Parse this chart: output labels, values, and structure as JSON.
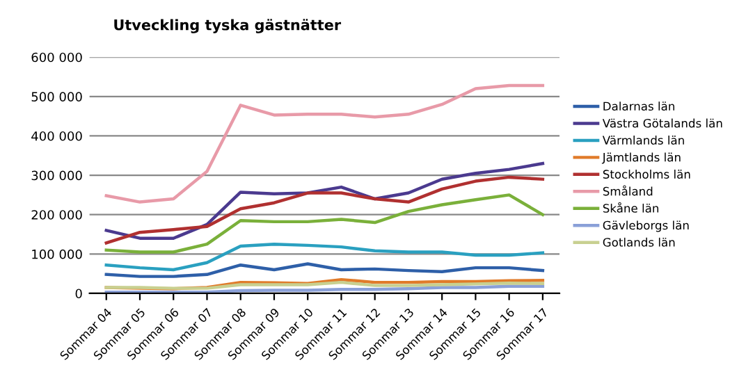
{
  "chart_data": {
    "type": "line",
    "title": "Utveckling tyska gästnätter",
    "categories": [
      "Sommar 04",
      "Sommar 05",
      "Sommar 06",
      "Sommar 07",
      "Sommar 08",
      "Sommar 09",
      "Sommar 10",
      "Sommar 11",
      "Sommar 12",
      "Sommar 13",
      "Sommar 14",
      "Sommar 15",
      "Sommar 16",
      "Sommar 17"
    ],
    "series": [
      {
        "name": "Dalarnas län",
        "color": "#2e5fa8",
        "values": [
          48000,
          43000,
          43000,
          48000,
          72000,
          60000,
          75000,
          60000,
          62000,
          58000,
          55000,
          65000,
          65000,
          58000
        ]
      },
      {
        "name": "Västra Götalands län",
        "color": "#4b3a8f",
        "values": [
          160000,
          140000,
          140000,
          175000,
          257000,
          253000,
          255000,
          270000,
          240000,
          255000,
          290000,
          305000,
          315000,
          330000
        ]
      },
      {
        "name": "Värmlands län",
        "color": "#2aa0c0",
        "values": [
          72000,
          65000,
          60000,
          78000,
          120000,
          125000,
          122000,
          118000,
          108000,
          105000,
          105000,
          97000,
          97000,
          103000
        ]
      },
      {
        "name": "Jämtlands län",
        "color": "#e07b2a",
        "values": [
          15000,
          13000,
          12000,
          15000,
          28000,
          27000,
          25000,
          35000,
          28000,
          28000,
          30000,
          30000,
          32000,
          33000
        ]
      },
      {
        "name": "Stockholms län",
        "color": "#b03030",
        "values": [
          128000,
          155000,
          162000,
          170000,
          215000,
          230000,
          255000,
          255000,
          240000,
          232000,
          265000,
          285000,
          295000,
          290000
        ]
      },
      {
        "name": "Småland",
        "color": "#e89aa8",
        "values": [
          248000,
          232000,
          240000,
          310000,
          478000,
          453000,
          455000,
          455000,
          448000,
          455000,
          480000,
          520000,
          528000,
          528000
        ]
      },
      {
        "name": "Skåne län",
        "color": "#7ab03a",
        "values": [
          110000,
          105000,
          105000,
          125000,
          185000,
          182000,
          182000,
          188000,
          180000,
          208000,
          225000,
          238000,
          250000,
          200000
        ]
      },
      {
        "name": "Gävleborgs län",
        "color": "#8aa0d8",
        "values": [
          3000,
          3000,
          3000,
          3000,
          7000,
          8000,
          8000,
          10000,
          10000,
          12000,
          15000,
          15000,
          18000,
          18000
        ]
      },
      {
        "name": "Gotlands län",
        "color": "#c8d090",
        "values": [
          15000,
          15000,
          13000,
          13000,
          22000,
          22000,
          22000,
          28000,
          20000,
          20000,
          22000,
          24000,
          26000,
          25000
        ]
      }
    ],
    "ylim": [
      0,
      600000
    ],
    "yticks": [
      {
        "value": 0,
        "label": "0"
      },
      {
        "value": 100000,
        "label": "100 000"
      },
      {
        "value": 200000,
        "label": "200 000"
      },
      {
        "value": 300000,
        "label": "300 000"
      },
      {
        "value": 400000,
        "label": "400 000"
      },
      {
        "value": 500000,
        "label": "500 000"
      },
      {
        "value": 600000,
        "label": "600 000"
      }
    ],
    "grid": "y",
    "legend": "right",
    "marker": "none",
    "line_style": "solid"
  }
}
